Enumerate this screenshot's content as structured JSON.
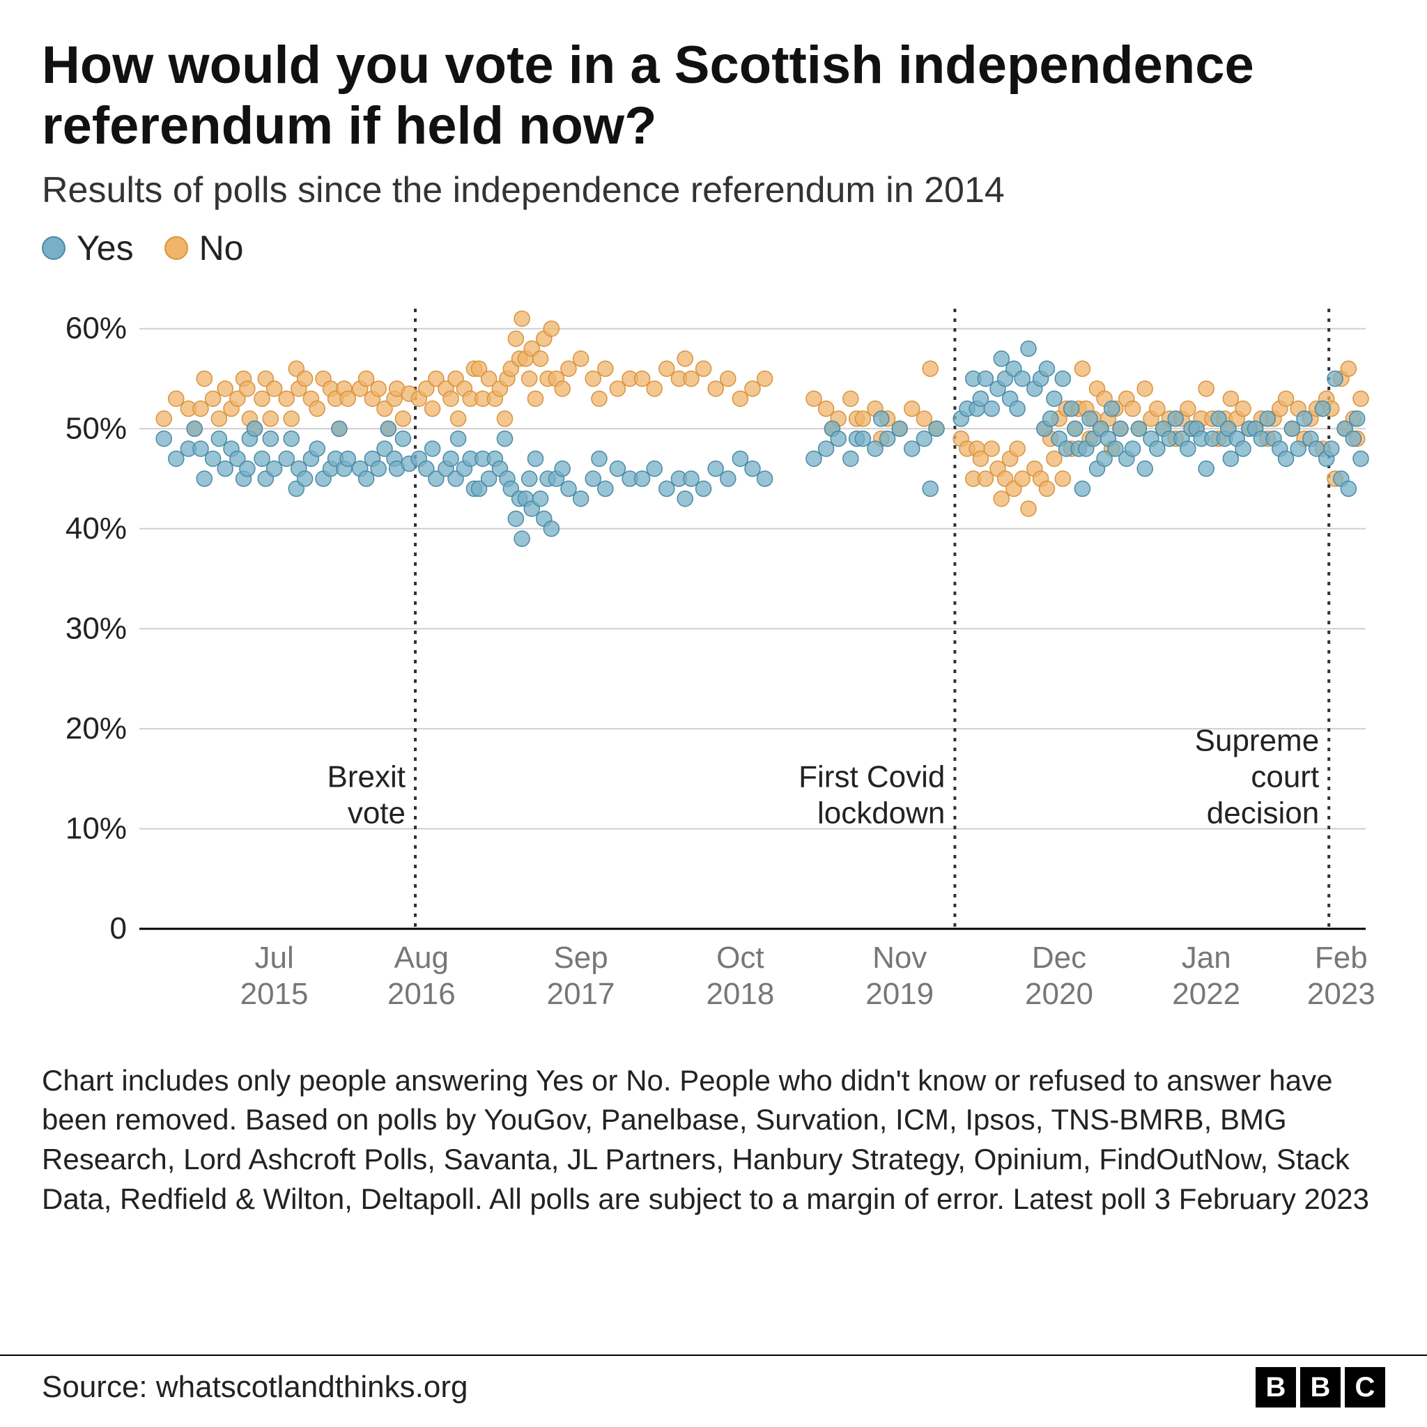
{
  "title": "How would you vote in a Scottish independence referendum if held now?",
  "subtitle": "Results of polls since the independence referendum in 2014",
  "legend": {
    "yes": {
      "label": "Yes",
      "color": "#77b0c7",
      "stroke": "#4a8aa5"
    },
    "no": {
      "label": "No",
      "color": "#f0b46b",
      "stroke": "#d8933f"
    }
  },
  "footnote": "Chart includes only people answering Yes or No. People who didn't know or refused to answer have been removed. Based on polls by YouGov, Panelbase, Survation, ICM, Ipsos, TNS-BMRB, BMG Research, Lord Ashcroft Polls, Savanta, JL Partners, Hanbury Strategy, Opinium, FindOutNow, Stack Data, Redfield & Wilton, Deltapoll. All polls are subject to a margin of error. Latest poll 3 February 2023",
  "source": "Source: whatscotlandthinks.org",
  "bbc_letters": [
    "B",
    "B",
    "C"
  ],
  "chart": {
    "type": "scatter",
    "background_color": "#ffffff",
    "grid_color": "#cfcfcf",
    "axis_color": "#000000",
    "x_range": [
      0,
      100
    ],
    "y_range": [
      0,
      62
    ],
    "y_ticks": [
      0,
      10,
      20,
      30,
      40,
      50,
      60
    ],
    "y_tick_format": "percent",
    "x_tick_labels": [
      {
        "x": 11,
        "line1": "Jul",
        "line2": "2015"
      },
      {
        "x": 23,
        "line1": "Aug",
        "line2": "2016"
      },
      {
        "x": 36,
        "line1": "Sep",
        "line2": "2017"
      },
      {
        "x": 49,
        "line1": "Oct",
        "line2": "2018"
      },
      {
        "x": 62,
        "line1": "Nov",
        "line2": "2019"
      },
      {
        "x": 75,
        "line1": "Dec",
        "line2": "2020"
      },
      {
        "x": 87,
        "line1": "Jan",
        "line2": "2022"
      },
      {
        "x": 98,
        "line1": "Feb",
        "line2": "2023"
      }
    ],
    "event_lines": [
      {
        "x": 22.5,
        "label_lines": [
          "Brexit",
          "vote"
        ]
      },
      {
        "x": 66.5,
        "label_lines": [
          "First Covid",
          "lockdown"
        ]
      },
      {
        "x": 97.0,
        "label_lines": [
          "Supreme",
          "court",
          "decision"
        ]
      }
    ],
    "marker_radius": 11,
    "marker_opacity": 0.75,
    "yes_points": [
      [
        2,
        49
      ],
      [
        3,
        47
      ],
      [
        4,
        48
      ],
      [
        4.5,
        50
      ],
      [
        5,
        48
      ],
      [
        5.3,
        45
      ],
      [
        6,
        47
      ],
      [
        6.5,
        49
      ],
      [
        7,
        46
      ],
      [
        7.5,
        48
      ],
      [
        8,
        47
      ],
      [
        8.5,
        45
      ],
      [
        8.8,
        46
      ],
      [
        9,
        49
      ],
      [
        9.4,
        50
      ],
      [
        10,
        47
      ],
      [
        10.3,
        45
      ],
      [
        10.7,
        49
      ],
      [
        11,
        46
      ],
      [
        12,
        47
      ],
      [
        12.4,
        49
      ],
      [
        12.8,
        44
      ],
      [
        13,
        46
      ],
      [
        13.5,
        45
      ],
      [
        14,
        47
      ],
      [
        14.5,
        48
      ],
      [
        15,
        45
      ],
      [
        15.6,
        46
      ],
      [
        16,
        47
      ],
      [
        16.3,
        50
      ],
      [
        16.7,
        46
      ],
      [
        17,
        47
      ],
      [
        18,
        46
      ],
      [
        18.5,
        45
      ],
      [
        19,
        47
      ],
      [
        19.5,
        46
      ],
      [
        20,
        48
      ],
      [
        20.3,
        50
      ],
      [
        20.8,
        47
      ],
      [
        21,
        46
      ],
      [
        21.5,
        49
      ],
      [
        22,
        46.5
      ],
      [
        22.8,
        47
      ],
      [
        23.4,
        46
      ],
      [
        23.9,
        48
      ],
      [
        24.2,
        45
      ],
      [
        25,
        46
      ],
      [
        25.4,
        47
      ],
      [
        25.8,
        45
      ],
      [
        26,
        49
      ],
      [
        26.5,
        46
      ],
      [
        27,
        47
      ],
      [
        27.3,
        44
      ],
      [
        27.7,
        44
      ],
      [
        28,
        47
      ],
      [
        28.5,
        45
      ],
      [
        29,
        47
      ],
      [
        29.4,
        46
      ],
      [
        29.8,
        49
      ],
      [
        30,
        45
      ],
      [
        30.3,
        44
      ],
      [
        30.7,
        41
      ],
      [
        31,
        43
      ],
      [
        31.2,
        39
      ],
      [
        31.5,
        43
      ],
      [
        31.8,
        45
      ],
      [
        32,
        42
      ],
      [
        32.3,
        47
      ],
      [
        32.7,
        43
      ],
      [
        33,
        41
      ],
      [
        33.3,
        45
      ],
      [
        33.6,
        40
      ],
      [
        34,
        45
      ],
      [
        34.5,
        46
      ],
      [
        35,
        44
      ],
      [
        36,
        43
      ],
      [
        37,
        45
      ],
      [
        37.5,
        47
      ],
      [
        38,
        44
      ],
      [
        39,
        46
      ],
      [
        40,
        45
      ],
      [
        41,
        45
      ],
      [
        42,
        46
      ],
      [
        43,
        44
      ],
      [
        44,
        45
      ],
      [
        44.5,
        43
      ],
      [
        45,
        45
      ],
      [
        46,
        44
      ],
      [
        47,
        46
      ],
      [
        48,
        45
      ],
      [
        49,
        47
      ],
      [
        50,
        46
      ],
      [
        51,
        45
      ],
      [
        55,
        47
      ],
      [
        56,
        48
      ],
      [
        56.5,
        50
      ],
      [
        57,
        49
      ],
      [
        58,
        47
      ],
      [
        58.5,
        49
      ],
      [
        59,
        49
      ],
      [
        60,
        48
      ],
      [
        60.5,
        51
      ],
      [
        61,
        49
      ],
      [
        62,
        50
      ],
      [
        63,
        48
      ],
      [
        64,
        49
      ],
      [
        64.5,
        44
      ],
      [
        65,
        50
      ],
      [
        67,
        51
      ],
      [
        67.5,
        52
      ],
      [
        68,
        55
      ],
      [
        68.3,
        52
      ],
      [
        68.6,
        53
      ],
      [
        69,
        55
      ],
      [
        69.5,
        52
      ],
      [
        70,
        54
      ],
      [
        70.3,
        57
      ],
      [
        70.6,
        55
      ],
      [
        71,
        53
      ],
      [
        71.3,
        56
      ],
      [
        71.6,
        52
      ],
      [
        72,
        55
      ],
      [
        72.5,
        58
      ],
      [
        73,
        54
      ],
      [
        73.5,
        55
      ],
      [
        73.8,
        50
      ],
      [
        74,
        56
      ],
      [
        74.3,
        51
      ],
      [
        74.6,
        53
      ],
      [
        75,
        49
      ],
      [
        75.3,
        55
      ],
      [
        75.6,
        48
      ],
      [
        76,
        52
      ],
      [
        76.3,
        50
      ],
      [
        76.6,
        48
      ],
      [
        76.9,
        44
      ],
      [
        77.2,
        48
      ],
      [
        77.5,
        51
      ],
      [
        77.8,
        49
      ],
      [
        78.1,
        46
      ],
      [
        78.4,
        50
      ],
      [
        78.7,
        47
      ],
      [
        79,
        49
      ],
      [
        79.3,
        52
      ],
      [
        79.6,
        48
      ],
      [
        80,
        50
      ],
      [
        80.5,
        47
      ],
      [
        81,
        48
      ],
      [
        81.5,
        50
      ],
      [
        82,
        46
      ],
      [
        82.5,
        49
      ],
      [
        83,
        48
      ],
      [
        83.5,
        50
      ],
      [
        84,
        49
      ],
      [
        84.5,
        51
      ],
      [
        85,
        49
      ],
      [
        85.5,
        48
      ],
      [
        85.8,
        50
      ],
      [
        86.2,
        50
      ],
      [
        86.6,
        49
      ],
      [
        87,
        46
      ],
      [
        87.5,
        49
      ],
      [
        88,
        51
      ],
      [
        88.5,
        49
      ],
      [
        88.8,
        50
      ],
      [
        89,
        47
      ],
      [
        89.5,
        49
      ],
      [
        90,
        48
      ],
      [
        90.5,
        50
      ],
      [
        91,
        50
      ],
      [
        91.5,
        49
      ],
      [
        92,
        51
      ],
      [
        92.5,
        49
      ],
      [
        93,
        48
      ],
      [
        93.5,
        47
      ],
      [
        94,
        50
      ],
      [
        94.5,
        48
      ],
      [
        95,
        51
      ],
      [
        95.5,
        49
      ],
      [
        96,
        48
      ],
      [
        96.5,
        52
      ],
      [
        96.8,
        47
      ],
      [
        97.2,
        48
      ],
      [
        97.5,
        55
      ],
      [
        98,
        45
      ],
      [
        98.3,
        50
      ],
      [
        98.6,
        44
      ],
      [
        99,
        49
      ],
      [
        99.3,
        51
      ],
      [
        99.6,
        47
      ]
    ],
    "no_points": [
      [
        2,
        51
      ],
      [
        3,
        53
      ],
      [
        4,
        52
      ],
      [
        4.5,
        50
      ],
      [
        5,
        52
      ],
      [
        5.3,
        55
      ],
      [
        6,
        53
      ],
      [
        6.5,
        51
      ],
      [
        7,
        54
      ],
      [
        7.5,
        52
      ],
      [
        8,
        53
      ],
      [
        8.5,
        55
      ],
      [
        8.8,
        54
      ],
      [
        9,
        51
      ],
      [
        9.4,
        50
      ],
      [
        10,
        53
      ],
      [
        10.3,
        55
      ],
      [
        10.7,
        51
      ],
      [
        11,
        54
      ],
      [
        12,
        53
      ],
      [
        12.4,
        51
      ],
      [
        12.8,
        56
      ],
      [
        13,
        54
      ],
      [
        13.5,
        55
      ],
      [
        14,
        53
      ],
      [
        14.5,
        52
      ],
      [
        15,
        55
      ],
      [
        15.6,
        54
      ],
      [
        16,
        53
      ],
      [
        16.3,
        50
      ],
      [
        16.7,
        54
      ],
      [
        17,
        53
      ],
      [
        18,
        54
      ],
      [
        18.5,
        55
      ],
      [
        19,
        53
      ],
      [
        19.5,
        54
      ],
      [
        20,
        52
      ],
      [
        20.3,
        50
      ],
      [
        20.8,
        53
      ],
      [
        21,
        54
      ],
      [
        21.5,
        51
      ],
      [
        22,
        53.5
      ],
      [
        22.8,
        53
      ],
      [
        23.4,
        54
      ],
      [
        23.9,
        52
      ],
      [
        24.2,
        55
      ],
      [
        25,
        54
      ],
      [
        25.4,
        53
      ],
      [
        25.8,
        55
      ],
      [
        26,
        51
      ],
      [
        26.5,
        54
      ],
      [
        27,
        53
      ],
      [
        27.3,
        56
      ],
      [
        27.7,
        56
      ],
      [
        28,
        53
      ],
      [
        28.5,
        55
      ],
      [
        29,
        53
      ],
      [
        29.4,
        54
      ],
      [
        29.8,
        51
      ],
      [
        30,
        55
      ],
      [
        30.3,
        56
      ],
      [
        30.7,
        59
      ],
      [
        31,
        57
      ],
      [
        31.2,
        61
      ],
      [
        31.5,
        57
      ],
      [
        31.8,
        55
      ],
      [
        32,
        58
      ],
      [
        32.3,
        53
      ],
      [
        32.7,
        57
      ],
      [
        33,
        59
      ],
      [
        33.3,
        55
      ],
      [
        33.6,
        60
      ],
      [
        34,
        55
      ],
      [
        34.5,
        54
      ],
      [
        35,
        56
      ],
      [
        36,
        57
      ],
      [
        37,
        55
      ],
      [
        37.5,
        53
      ],
      [
        38,
        56
      ],
      [
        39,
        54
      ],
      [
        40,
        55
      ],
      [
        41,
        55
      ],
      [
        42,
        54
      ],
      [
        43,
        56
      ],
      [
        44,
        55
      ],
      [
        44.5,
        57
      ],
      [
        45,
        55
      ],
      [
        46,
        56
      ],
      [
        47,
        54
      ],
      [
        48,
        55
      ],
      [
        49,
        53
      ],
      [
        50,
        54
      ],
      [
        51,
        55
      ],
      [
        55,
        53
      ],
      [
        56,
        52
      ],
      [
        56.5,
        50
      ],
      [
        57,
        51
      ],
      [
        58,
        53
      ],
      [
        58.5,
        51
      ],
      [
        59,
        51
      ],
      [
        60,
        52
      ],
      [
        60.5,
        49
      ],
      [
        61,
        51
      ],
      [
        62,
        50
      ],
      [
        63,
        52
      ],
      [
        64,
        51
      ],
      [
        64.5,
        56
      ],
      [
        65,
        50
      ],
      [
        67,
        49
      ],
      [
        67.5,
        48
      ],
      [
        68,
        45
      ],
      [
        68.3,
        48
      ],
      [
        68.6,
        47
      ],
      [
        69,
        45
      ],
      [
        69.5,
        48
      ],
      [
        70,
        46
      ],
      [
        70.3,
        43
      ],
      [
        70.6,
        45
      ],
      [
        71,
        47
      ],
      [
        71.3,
        44
      ],
      [
        71.6,
        48
      ],
      [
        72,
        45
      ],
      [
        72.5,
        42
      ],
      [
        73,
        46
      ],
      [
        73.5,
        45
      ],
      [
        73.8,
        50
      ],
      [
        74,
        44
      ],
      [
        74.3,
        49
      ],
      [
        74.6,
        47
      ],
      [
        75,
        51
      ],
      [
        75.3,
        45
      ],
      [
        75.6,
        52
      ],
      [
        76,
        48
      ],
      [
        76.3,
        50
      ],
      [
        76.6,
        52
      ],
      [
        76.9,
        56
      ],
      [
        77.2,
        52
      ],
      [
        77.5,
        49
      ],
      [
        77.8,
        51
      ],
      [
        78.1,
        54
      ],
      [
        78.4,
        50
      ],
      [
        78.7,
        53
      ],
      [
        79,
        51
      ],
      [
        79.3,
        48
      ],
      [
        79.6,
        52
      ],
      [
        80,
        50
      ],
      [
        80.5,
        53
      ],
      [
        81,
        52
      ],
      [
        81.5,
        50
      ],
      [
        82,
        54
      ],
      [
        82.5,
        51
      ],
      [
        83,
        52
      ],
      [
        83.5,
        50
      ],
      [
        84,
        51
      ],
      [
        84.5,
        49
      ],
      [
        85,
        51
      ],
      [
        85.5,
        52
      ],
      [
        85.8,
        50
      ],
      [
        86.2,
        50
      ],
      [
        86.6,
        51
      ],
      [
        87,
        54
      ],
      [
        87.5,
        51
      ],
      [
        88,
        49
      ],
      [
        88.5,
        51
      ],
      [
        88.8,
        50
      ],
      [
        89,
        53
      ],
      [
        89.5,
        51
      ],
      [
        90,
        52
      ],
      [
        90.5,
        50
      ],
      [
        91,
        50
      ],
      [
        91.5,
        51
      ],
      [
        92,
        49
      ],
      [
        92.5,
        51
      ],
      [
        93,
        52
      ],
      [
        93.5,
        53
      ],
      [
        94,
        50
      ],
      [
        94.5,
        52
      ],
      [
        95,
        49
      ],
      [
        95.5,
        51
      ],
      [
        96,
        52
      ],
      [
        96.5,
        48
      ],
      [
        96.8,
        53
      ],
      [
        97.2,
        52
      ],
      [
        97.5,
        45
      ],
      [
        98,
        55
      ],
      [
        98.3,
        50
      ],
      [
        98.6,
        56
      ],
      [
        99,
        51
      ],
      [
        99.3,
        49
      ],
      [
        99.6,
        53
      ]
    ]
  }
}
